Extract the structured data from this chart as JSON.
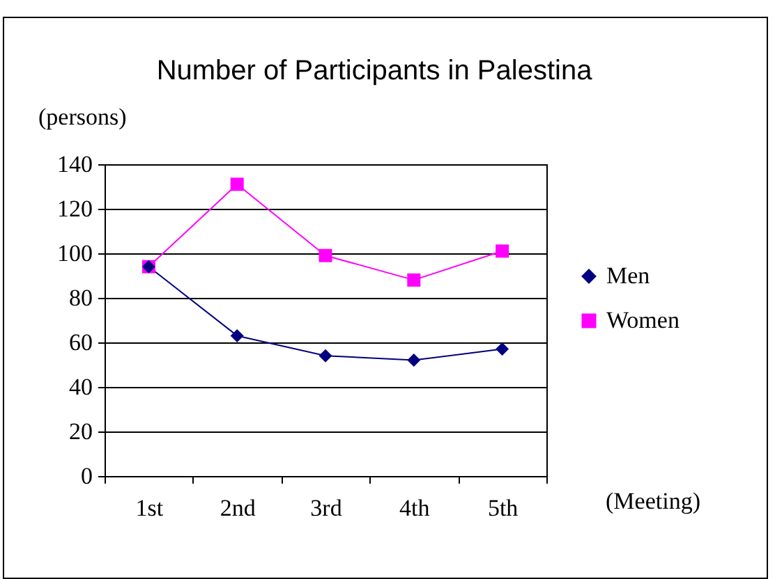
{
  "chart_data": {
    "type": "line",
    "title": "Number of Participants in Palestina",
    "ylabel": "(persons)",
    "xlabel": "(Meeting)",
    "categories": [
      "1st",
      "2nd",
      "3rd",
      "4th",
      "5th"
    ],
    "series": [
      {
        "name": "Men",
        "color": "#000080",
        "marker": "diamond",
        "values": [
          94,
          63,
          54,
          52,
          57
        ]
      },
      {
        "name": "Women",
        "color": "#ff00ff",
        "marker": "square",
        "values": [
          94,
          131,
          99,
          88,
          101
        ]
      }
    ],
    "ylim": [
      0,
      140
    ],
    "yticks": [
      0,
      20,
      40,
      60,
      80,
      100,
      120,
      140
    ],
    "grid": "y",
    "legend": "right"
  }
}
